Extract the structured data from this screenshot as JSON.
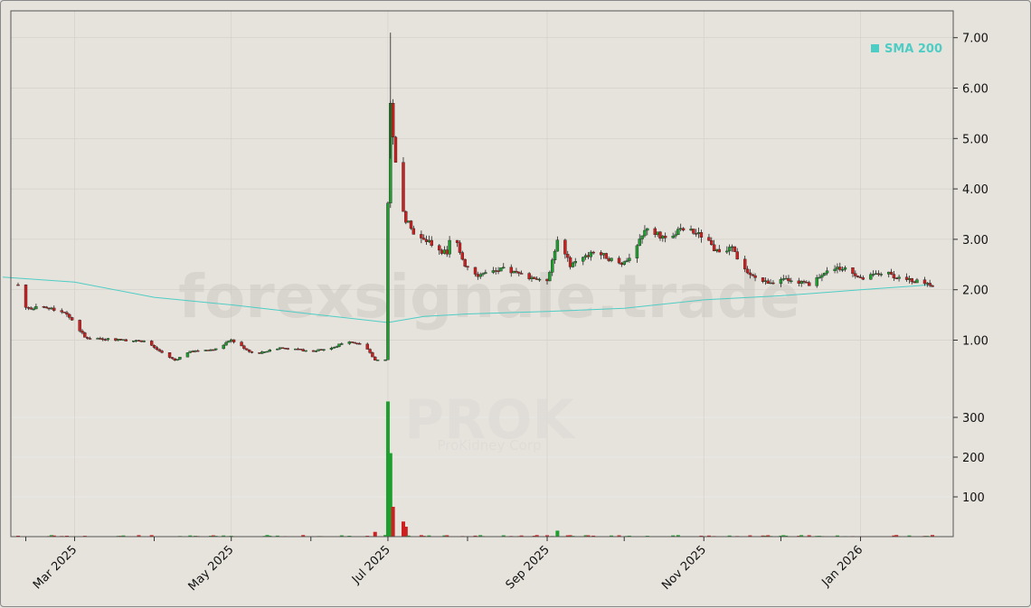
{
  "chart_data": {
    "type": "candlestick",
    "ticker": "PROK",
    "company": "ProKidney Corp",
    "watermark": "forexsignale.trade",
    "legend": {
      "label": "SMA 200",
      "color": "#4ecdc4",
      "placement": "top-right"
    },
    "colors": {
      "up": "#1e9e2e",
      "down": "#cc1f1f",
      "sma": "#4ecdc4",
      "price_area_bg": "#e6e3dd",
      "grid": "#d4d0c8"
    },
    "price_axis": {
      "ticks": [
        "1.00",
        "2.00",
        "3.00",
        "4.00",
        "5.00",
        "6.00",
        "7.00"
      ],
      "range": [
        0,
        7.5
      ]
    },
    "volume_axis": {
      "ticks": [
        "100",
        "200",
        "300"
      ],
      "range": [
        0,
        350
      ]
    },
    "x_axis": {
      "labels": [
        "Mar 2025",
        "May 2025",
        "Jul 2025",
        "Sep 2025",
        "Nov 2025",
        "Jan 2026"
      ],
      "grid": true
    },
    "anchors": [
      [
        "2025-02-10",
        1.65
      ],
      [
        "2025-02-20",
        1.62
      ],
      [
        "2025-02-25",
        1.55
      ],
      [
        "2025-03-01",
        1.35
      ],
      [
        "2025-03-05",
        1.05
      ],
      [
        "2025-03-20",
        1.0
      ],
      [
        "2025-03-28",
        0.98
      ],
      [
        "2025-04-05",
        0.72
      ],
      [
        "2025-04-09",
        0.6
      ],
      [
        "2025-04-15",
        0.78
      ],
      [
        "2025-04-25",
        0.82
      ],
      [
        "2025-05-01",
        1.0
      ],
      [
        "2025-05-10",
        0.72
      ],
      [
        "2025-05-20",
        0.85
      ],
      [
        "2025-06-01",
        0.78
      ],
      [
        "2025-06-10",
        0.85
      ],
      [
        "2025-06-15",
        1.0
      ],
      [
        "2025-06-22",
        0.88
      ],
      [
        "2025-06-26",
        0.6
      ],
      [
        "2025-06-30",
        0.62
      ],
      [
        "2025-07-01",
        3.7
      ],
      [
        "2025-07-02",
        5.6
      ],
      [
        "2025-07-03",
        5.0
      ],
      [
        "2025-07-04",
        4.6
      ],
      [
        "2025-07-06",
        3.6
      ],
      [
        "2025-07-10",
        3.2
      ],
      [
        "2025-07-14",
        3.0
      ],
      [
        "2025-07-20",
        2.85
      ],
      [
        "2025-07-24",
        2.7
      ],
      [
        "2025-07-26",
        3.2
      ],
      [
        "2025-07-31",
        2.5
      ],
      [
        "2025-08-05",
        2.3
      ],
      [
        "2025-08-15",
        2.4
      ],
      [
        "2025-08-25",
        2.25
      ],
      [
        "2025-09-01",
        2.2
      ],
      [
        "2025-09-05",
        2.95
      ],
      [
        "2025-09-10",
        2.5
      ],
      [
        "2025-09-20",
        2.75
      ],
      [
        "2025-09-30",
        2.5
      ],
      [
        "2025-10-05",
        2.75
      ],
      [
        "2025-10-10",
        3.25
      ],
      [
        "2025-10-15",
        3.05
      ],
      [
        "2025-10-25",
        3.2
      ],
      [
        "2025-11-01",
        3.05
      ],
      [
        "2025-11-05",
        2.8
      ],
      [
        "2025-11-12",
        2.8
      ],
      [
        "2025-11-18",
        2.3
      ],
      [
        "2025-11-25",
        2.15
      ],
      [
        "2025-12-05",
        2.2
      ],
      [
        "2025-12-12",
        2.1
      ],
      [
        "2025-12-20",
        2.45
      ],
      [
        "2025-12-28",
        2.4
      ],
      [
        "2026-01-01",
        2.2
      ],
      [
        "2026-01-10",
        2.35
      ],
      [
        "2026-01-18",
        2.2
      ],
      [
        "2026-01-25",
        2.15
      ],
      [
        "2026-01-29",
        2.1
      ]
    ],
    "sma_200": [
      [
        "2025-02-01",
        2.25
      ],
      [
        "2025-03-01",
        2.15
      ],
      [
        "2025-04-01",
        1.85
      ],
      [
        "2025-05-01",
        1.7
      ],
      [
        "2025-06-01",
        1.52
      ],
      [
        "2025-07-01",
        1.35
      ],
      [
        "2025-07-15",
        1.47
      ],
      [
        "2025-08-01",
        1.52
      ],
      [
        "2025-09-01",
        1.57
      ],
      [
        "2025-10-01",
        1.63
      ],
      [
        "2025-11-01",
        1.8
      ],
      [
        "2025-12-01",
        1.88
      ],
      [
        "2026-01-01",
        2.0
      ],
      [
        "2026-01-29",
        2.1
      ]
    ],
    "volume_spikes": [
      [
        "2025-07-01",
        340
      ],
      [
        "2025-07-02",
        210
      ],
      [
        "2025-07-03",
        75
      ],
      [
        "2025-07-06",
        30
      ],
      [
        "2025-07-07",
        38
      ],
      [
        "2025-07-08",
        25
      ],
      [
        "2025-09-05",
        15
      ],
      [
        "2025-06-26",
        12
      ]
    ]
  }
}
